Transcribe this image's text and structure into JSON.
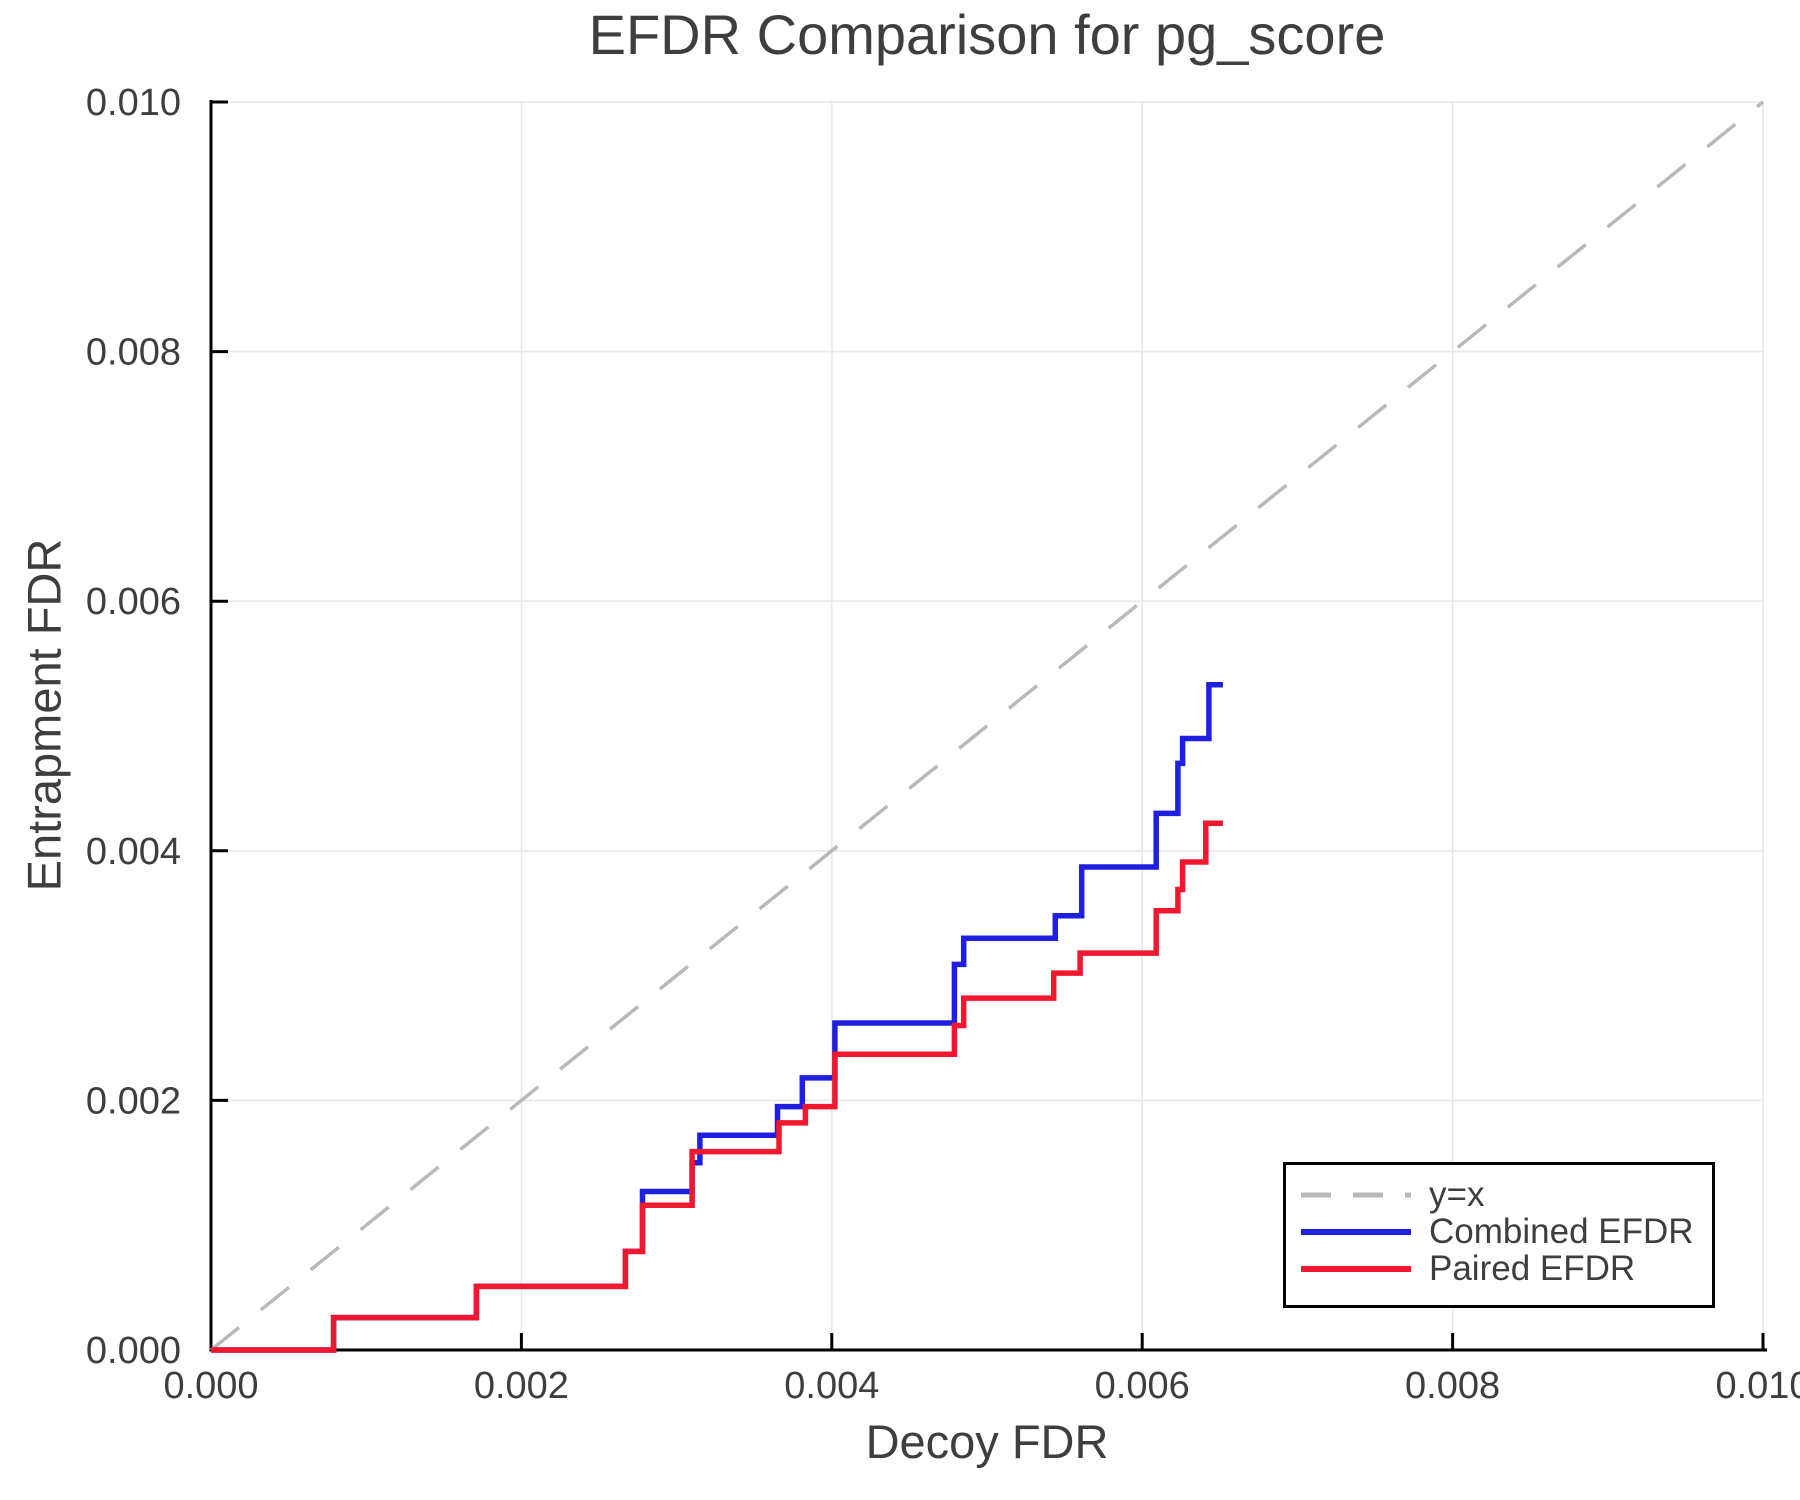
{
  "chart_data": {
    "type": "line",
    "title": "EFDR Comparison for pg_score",
    "xlabel": "Decoy FDR",
    "ylabel": "Entrapment FDR",
    "xlim": [
      0.0,
      0.01
    ],
    "ylim": [
      0.0,
      0.01
    ],
    "grid": true,
    "xticks": [
      0.0,
      0.002,
      0.004,
      0.006,
      0.008,
      0.01
    ],
    "xtick_labels": [
      "0.000",
      "0.002",
      "0.004",
      "0.006",
      "0.008",
      "0.010"
    ],
    "yticks": [
      0.0,
      0.002,
      0.004,
      0.006,
      0.008,
      0.01
    ],
    "ytick_labels": [
      "0.000",
      "0.002",
      "0.004",
      "0.006",
      "0.008",
      "0.010"
    ],
    "legend": {
      "position": "lower right",
      "entries": [
        {
          "label": "y=x"
        },
        {
          "label": "Combined EFDR"
        },
        {
          "label": "Paired EFDR"
        }
      ]
    },
    "series": [
      {
        "name": "y=x",
        "kind": "line",
        "style": "dashed",
        "color": "#b9b9b9",
        "points": [
          [
            0.0,
            0.0
          ],
          [
            0.01,
            0.01
          ]
        ]
      },
      {
        "name": "Combined EFDR",
        "kind": "step",
        "style": "solid",
        "color": "#1f1fe0",
        "end_x": 0.00652,
        "points": [
          [
            0.0,
            0.0
          ],
          [
            0.00079,
            0.00026
          ],
          [
            0.00171,
            0.00051
          ],
          [
            0.00267,
            0.00079
          ],
          [
            0.00278,
            0.00127
          ],
          [
            0.0031,
            0.0015
          ],
          [
            0.00315,
            0.00172
          ],
          [
            0.00365,
            0.00195
          ],
          [
            0.00381,
            0.00218
          ],
          [
            0.00402,
            0.00262
          ],
          [
            0.00479,
            0.00309
          ],
          [
            0.00485,
            0.0033
          ],
          [
            0.00544,
            0.00348
          ],
          [
            0.00561,
            0.00387
          ],
          [
            0.00609,
            0.0043
          ],
          [
            0.00623,
            0.0047
          ],
          [
            0.00626,
            0.0049
          ],
          [
            0.00643,
            0.00533
          ]
        ]
      },
      {
        "name": "Paired EFDR",
        "kind": "step",
        "style": "solid",
        "color": "#f0182e",
        "end_x": 0.00652,
        "points": [
          [
            0.0,
            0.0
          ],
          [
            0.00079,
            0.00026
          ],
          [
            0.00171,
            0.00051
          ],
          [
            0.00267,
            0.00079
          ],
          [
            0.00278,
            0.00116
          ],
          [
            0.0031,
            0.00159
          ],
          [
            0.00366,
            0.00182
          ],
          [
            0.00383,
            0.00195
          ],
          [
            0.00402,
            0.00237
          ],
          [
            0.00479,
            0.0026
          ],
          [
            0.00485,
            0.00282
          ],
          [
            0.00543,
            0.00302
          ],
          [
            0.0056,
            0.00318
          ],
          [
            0.00609,
            0.00352
          ],
          [
            0.00623,
            0.00369
          ],
          [
            0.00626,
            0.00391
          ],
          [
            0.00641,
            0.00422
          ]
        ]
      }
    ],
    "axis_colors": {
      "spine": "#000000",
      "grid": "#e8e8e8",
      "tick_label": "#3e3e3e",
      "title": "#3e3e3e"
    }
  }
}
